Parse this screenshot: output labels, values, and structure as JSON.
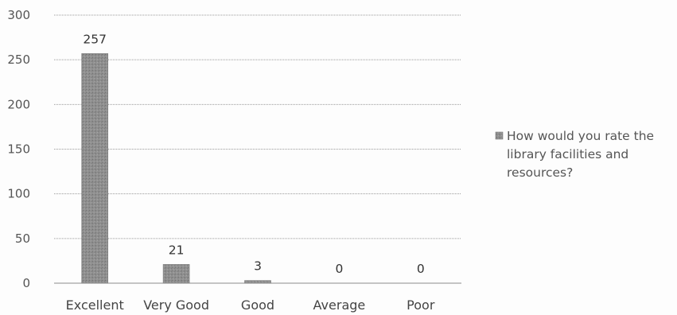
{
  "chart_data": {
    "type": "bar",
    "categories": [
      "Excellent",
      "Very Good",
      "Good",
      "Average",
      "Poor"
    ],
    "series": [
      {
        "name": "How would you rate the library facilities and resources?",
        "values": [
          257,
          21,
          3,
          0,
          0
        ]
      }
    ],
    "ylim": [
      0,
      300
    ],
    "yticks": [
      0,
      50,
      100,
      150,
      200,
      250,
      300
    ],
    "data_labels": [
      "257",
      "21",
      "3",
      "0",
      "0"
    ],
    "legend": {
      "position": "right",
      "lines": [
        "How would you rate the",
        "library facilities and",
        "resources?"
      ]
    },
    "grid": true,
    "colors": {
      "bar": "#8f8f8f",
      "bar_dark": "#6f6f6f",
      "grid": "#9a9a9a",
      "text": "#555555"
    }
  }
}
